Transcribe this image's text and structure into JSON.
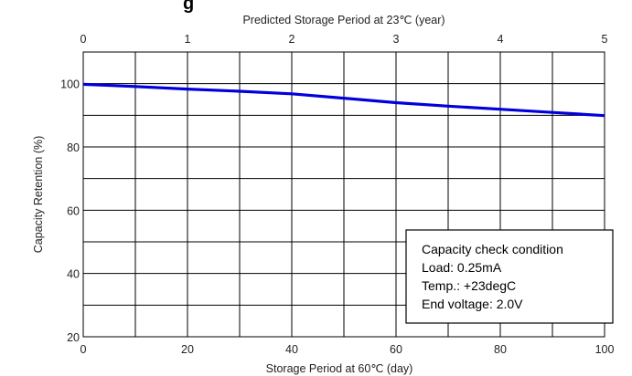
{
  "title_fragment": "g",
  "condition_box": {
    "lines": [
      "Capacity check condition",
      "Load:  0.25mA",
      "Temp.: +23degC",
      "End voltage: 2.0V"
    ]
  },
  "colors": {
    "series": "#0000dd",
    "grid": "#000000",
    "frame": "#000000"
  },
  "chart_data": {
    "type": "line",
    "xlabel": "Storage Period at 60℃ (day)",
    "x2label": "Predicted Storage Period at 23℃ (year)",
    "ylabel": "Capacity Retention (%)",
    "xlim": [
      0,
      100
    ],
    "x2lim": [
      0,
      5
    ],
    "ylim": [
      20,
      110
    ],
    "xticks": [
      "0",
      "20",
      "40",
      "60",
      "80",
      "100"
    ],
    "x2ticks": [
      "0",
      "1",
      "2",
      "3",
      "4",
      "5"
    ],
    "yticks": [
      "20",
      "40",
      "60",
      "80",
      "100"
    ],
    "grid": true,
    "series": [
      {
        "x": [
          0,
          10,
          20,
          30,
          40,
          50,
          60,
          70,
          80,
          90,
          100
        ],
        "y": [
          99.8,
          99.1,
          98.3,
          97.6,
          96.8,
          95.4,
          94.0,
          92.9,
          91.9,
          90.9,
          89.9
        ]
      }
    ]
  }
}
